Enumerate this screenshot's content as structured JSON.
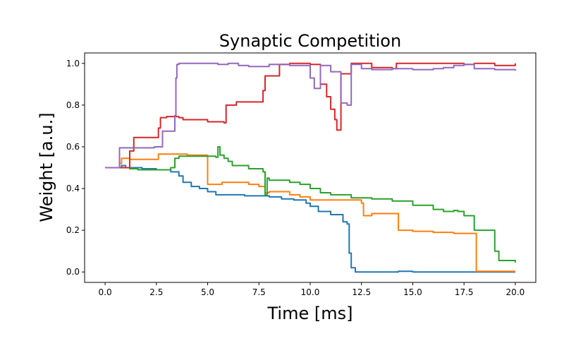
{
  "chart_data": {
    "type": "line",
    "title": "Synaptic Competition",
    "xlabel": "Time [ms]",
    "ylabel": "Weight [a.u.]",
    "xlim": [
      -1.0,
      21.0
    ],
    "ylim": [
      -0.05,
      1.05
    ],
    "xticks": [
      0.0,
      2.5,
      5.0,
      7.5,
      10.0,
      12.5,
      15.0,
      17.5,
      20.0
    ],
    "xtick_labels": [
      "0.0",
      "2.5",
      "5.0",
      "7.5",
      "10.0",
      "12.5",
      "15.0",
      "17.5",
      "20.0"
    ],
    "yticks": [
      0.0,
      0.2,
      0.4,
      0.6,
      0.8,
      1.0
    ],
    "ytick_labels": [
      "0.0",
      "0.2",
      "0.4",
      "0.6",
      "0.8",
      "1.0"
    ],
    "grid": false,
    "series": [
      {
        "color": "#1f77b4",
        "x": [
          0.0,
          0.8,
          1.0,
          1.8,
          2.5,
          3.2,
          3.6,
          3.8,
          4.2,
          4.6,
          5.0,
          5.4,
          6.0,
          6.8,
          7.6,
          8.0,
          8.6,
          9.2,
          9.8,
          10.0,
          10.4,
          11.0,
          11.6,
          11.8,
          11.9,
          12.0,
          12.2,
          14.0,
          14.3,
          15.0,
          18.0,
          20.0
        ],
        "y": [
          0.5,
          0.51,
          0.5,
          0.495,
          0.49,
          0.48,
          0.46,
          0.43,
          0.41,
          0.4,
          0.385,
          0.37,
          0.37,
          0.365,
          0.365,
          0.36,
          0.35,
          0.345,
          0.33,
          0.315,
          0.29,
          0.275,
          0.24,
          0.23,
          0.09,
          0.02,
          0.0,
          0.0,
          0.003,
          0.0,
          0.0,
          0.0
        ]
      },
      {
        "color": "#ff7f0e",
        "x": [
          0.0,
          0.7,
          0.8,
          1.2,
          2.5,
          2.6,
          3.0,
          4.0,
          4.8,
          4.9,
          5.0,
          5.6,
          5.7,
          6.0,
          7.0,
          7.5,
          7.8,
          8.0,
          9.0,
          9.5,
          10.0,
          12.0,
          12.5,
          12.6,
          13.0,
          14.2,
          14.3,
          15.0,
          16.0,
          17.0,
          18.0,
          18.1,
          20.0
        ],
        "y": [
          0.5,
          0.52,
          0.545,
          0.54,
          0.54,
          0.565,
          0.565,
          0.56,
          0.56,
          0.56,
          0.42,
          0.42,
          0.43,
          0.43,
          0.42,
          0.41,
          0.38,
          0.385,
          0.37,
          0.36,
          0.345,
          0.345,
          0.33,
          0.27,
          0.28,
          0.28,
          0.2,
          0.195,
          0.19,
          0.185,
          0.185,
          0.003,
          0.003
        ]
      },
      {
        "color": "#2ca02c",
        "x": [
          0.0,
          1.2,
          1.6,
          2.5,
          3.0,
          3.2,
          3.4,
          3.6,
          5.0,
          5.4,
          5.5,
          5.6,
          5.8,
          6.0,
          6.2,
          7.0,
          7.7,
          7.8,
          7.9,
          8.0,
          9.0,
          9.5,
          10.0,
          10.5,
          11.0,
          12.0,
          13.0,
          14.0,
          15.0,
          16.0,
          16.5,
          17.0,
          17.2,
          17.5,
          18.0,
          18.5,
          18.9,
          19.0,
          19.2,
          20.0
        ],
        "y": [
          0.5,
          0.495,
          0.49,
          0.49,
          0.49,
          0.5,
          0.545,
          0.555,
          0.555,
          0.55,
          0.6,
          0.56,
          0.545,
          0.53,
          0.51,
          0.495,
          0.48,
          0.37,
          0.45,
          0.44,
          0.43,
          0.42,
          0.4,
          0.38,
          0.37,
          0.355,
          0.35,
          0.34,
          0.32,
          0.3,
          0.29,
          0.295,
          0.29,
          0.27,
          0.2,
          0.2,
          0.2,
          0.1,
          0.055,
          0.045
        ]
      },
      {
        "color": "#d62728",
        "x": [
          0.0,
          1.0,
          1.2,
          1.4,
          2.0,
          2.6,
          2.7,
          3.0,
          3.6,
          3.8,
          5.0,
          5.8,
          5.9,
          6.4,
          7.6,
          7.7,
          7.8,
          8.5,
          9.0,
          10.0,
          10.5,
          10.8,
          11.0,
          11.2,
          11.3,
          11.5,
          12.0,
          13.0,
          14.0,
          14.2,
          15.0,
          16.0,
          17.5,
          18.0,
          19.0,
          20.0
        ],
        "y": [
          0.5,
          0.5,
          0.58,
          0.645,
          0.645,
          0.69,
          0.74,
          0.745,
          0.74,
          0.73,
          0.72,
          0.715,
          0.8,
          0.815,
          0.815,
          0.87,
          0.94,
          0.995,
          1.0,
          0.995,
          0.9,
          0.84,
          0.78,
          0.73,
          0.68,
          0.95,
          1.0,
          0.98,
          0.975,
          1.0,
          1.0,
          1.0,
          0.995,
          1.0,
          0.99,
          1.0
        ]
      },
      {
        "color": "#9467bd",
        "x": [
          0.0,
          0.5,
          0.7,
          2.4,
          2.8,
          3.2,
          3.4,
          3.45,
          3.5,
          3.6,
          4.0,
          5.0,
          5.5,
          6.0,
          6.5,
          7.0,
          8.0,
          9.0,
          9.8,
          10.0,
          10.2,
          10.5,
          11.0,
          11.5,
          11.8,
          12.0,
          12.5,
          13.0,
          14.0,
          15.0,
          16.0,
          16.5,
          17.0,
          17.5,
          18.0,
          19.0,
          20.0
        ],
        "y": [
          0.5,
          0.5,
          0.595,
          0.6,
          0.675,
          0.675,
          0.75,
          0.93,
          0.995,
          1.0,
          1.0,
          1.0,
          0.995,
          1.0,
          0.99,
          0.985,
          0.995,
          0.99,
          0.99,
          0.93,
          0.88,
          0.99,
          0.96,
          0.81,
          0.8,
          0.995,
          0.975,
          0.97,
          0.975,
          0.97,
          0.975,
          0.98,
          0.99,
          0.995,
          0.975,
          0.97,
          0.965
        ]
      }
    ]
  }
}
